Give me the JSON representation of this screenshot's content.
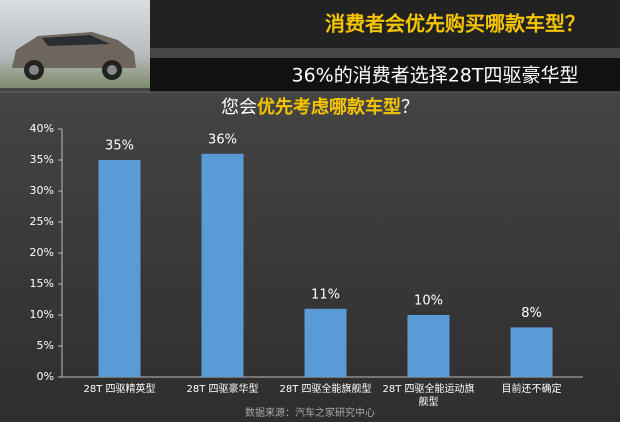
{
  "header": {
    "title": "消费者会优先购买哪款车型？",
    "subtitle": "36%的消费者选择28T四驱豪华型"
  },
  "chart_data": {
    "type": "bar",
    "title_segments": [
      "您会",
      "优先考虑哪款车型",
      "？"
    ],
    "categories": [
      "28T 四驱精英型",
      "28T 四驱豪华型",
      "28T 四驱全能旗舰型",
      "28T 四驱全能运动旗舰型",
      "目前还不确定"
    ],
    "values": [
      35,
      36,
      11,
      10,
      8
    ],
    "value_labels": [
      "35%",
      "36%",
      "11%",
      "10%",
      "8%"
    ],
    "color": "#5b9bd5",
    "ylim": [
      0,
      40
    ],
    "yticks": [
      {
        "value": 0,
        "label": "0%"
      },
      {
        "value": 5,
        "label": "5%"
      },
      {
        "value": 10,
        "label": "10%"
      },
      {
        "value": 15,
        "label": "15%"
      },
      {
        "value": 20,
        "label": "20%"
      },
      {
        "value": 25,
        "label": "25%"
      },
      {
        "value": 30,
        "label": "30%"
      },
      {
        "value": 35,
        "label": "35%"
      },
      {
        "value": 40,
        "label": "40%"
      }
    ],
    "source": "数据来源：汽车之家研究中心"
  }
}
